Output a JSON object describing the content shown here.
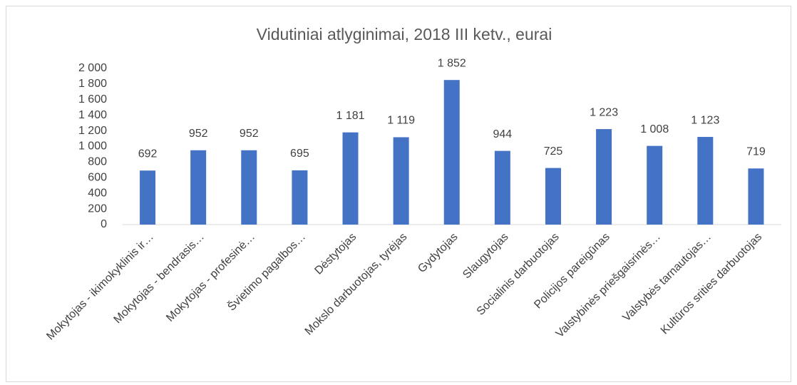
{
  "chart_data": {
    "type": "bar",
    "title": "Vidutiniai atlyginimai, 2018 III ketv., eurai",
    "categories": [
      "Mokytojas - ikimokyklinis ir…",
      "Mokytojas - bendrasis…",
      "Mokytojas - profesinė…",
      "Švietimo pagalbos…",
      "Dėstytojas",
      "Mokslo darbuotojas, tyrėjas",
      "Gydytojas",
      "Slaugytojas",
      "Socialinis darbuotojas",
      "Policijos pareigūnas",
      "Valstybinės priešgaisrinės…",
      "Valstybės tarnautojas…",
      "Kultūros srities darbuotojas"
    ],
    "values": [
      692,
      952,
      952,
      695,
      1181,
      1119,
      1852,
      944,
      725,
      1223,
      1008,
      1123,
      719
    ],
    "value_labels": [
      "692",
      "952",
      "952",
      "695",
      "1 181",
      "1 119",
      "1 852",
      "944",
      "725",
      "1 223",
      "1 008",
      "1 123",
      "719"
    ],
    "color": "#4472c4",
    "ylim": [
      0,
      2000
    ],
    "yticks": [
      0,
      200,
      400,
      600,
      800,
      {
        "value": 1000,
        "label": "1 000"
      },
      {
        "value": 1200,
        "label": "1 200"
      },
      {
        "value": 1400,
        "label": "1 400"
      },
      {
        "value": 1600,
        "label": "1 600"
      },
      {
        "value": 1800,
        "label": "1 800"
      },
      {
        "value": 2000,
        "label": "2 000"
      }
    ],
    "grid": false
  }
}
